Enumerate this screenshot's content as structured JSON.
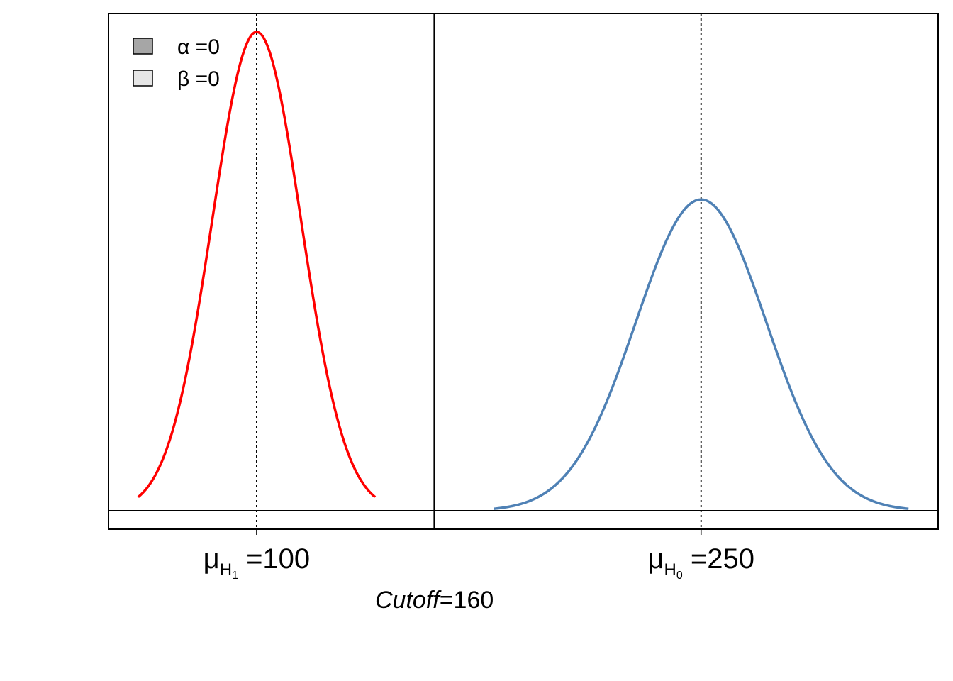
{
  "chart_data": {
    "type": "line",
    "xlim": [
      50,
      330
    ],
    "ylim": [
      0,
      1
    ],
    "grid": false,
    "legend_position": "top-left",
    "legend": [
      {
        "symbol": "α",
        "suffix": " =0",
        "fill": "#a6a6a6"
      },
      {
        "symbol": "β",
        "suffix": " =0",
        "fill": "#e6e6e6"
      }
    ],
    "series": [
      {
        "mean": 100,
        "sd": 15,
        "peak": 1.0,
        "range": [
          60,
          140
        ],
        "color": "#ff0000"
      },
      {
        "mean": 250,
        "sd": 22,
        "peak": 0.65,
        "range": [
          180,
          320
        ],
        "color": "#4f81b5"
      }
    ],
    "cutoff_x": 160,
    "xticks": [
      {
        "x": 100,
        "symbol": "μ",
        "sub": "H",
        "subsub": "1",
        "text": " =100"
      },
      {
        "x": 250,
        "symbol": "μ",
        "sub": "H",
        "subsub": "0",
        "text": " =250"
      }
    ],
    "cutoff_label": {
      "italic": "Cutoff",
      "rest": "=160"
    }
  }
}
